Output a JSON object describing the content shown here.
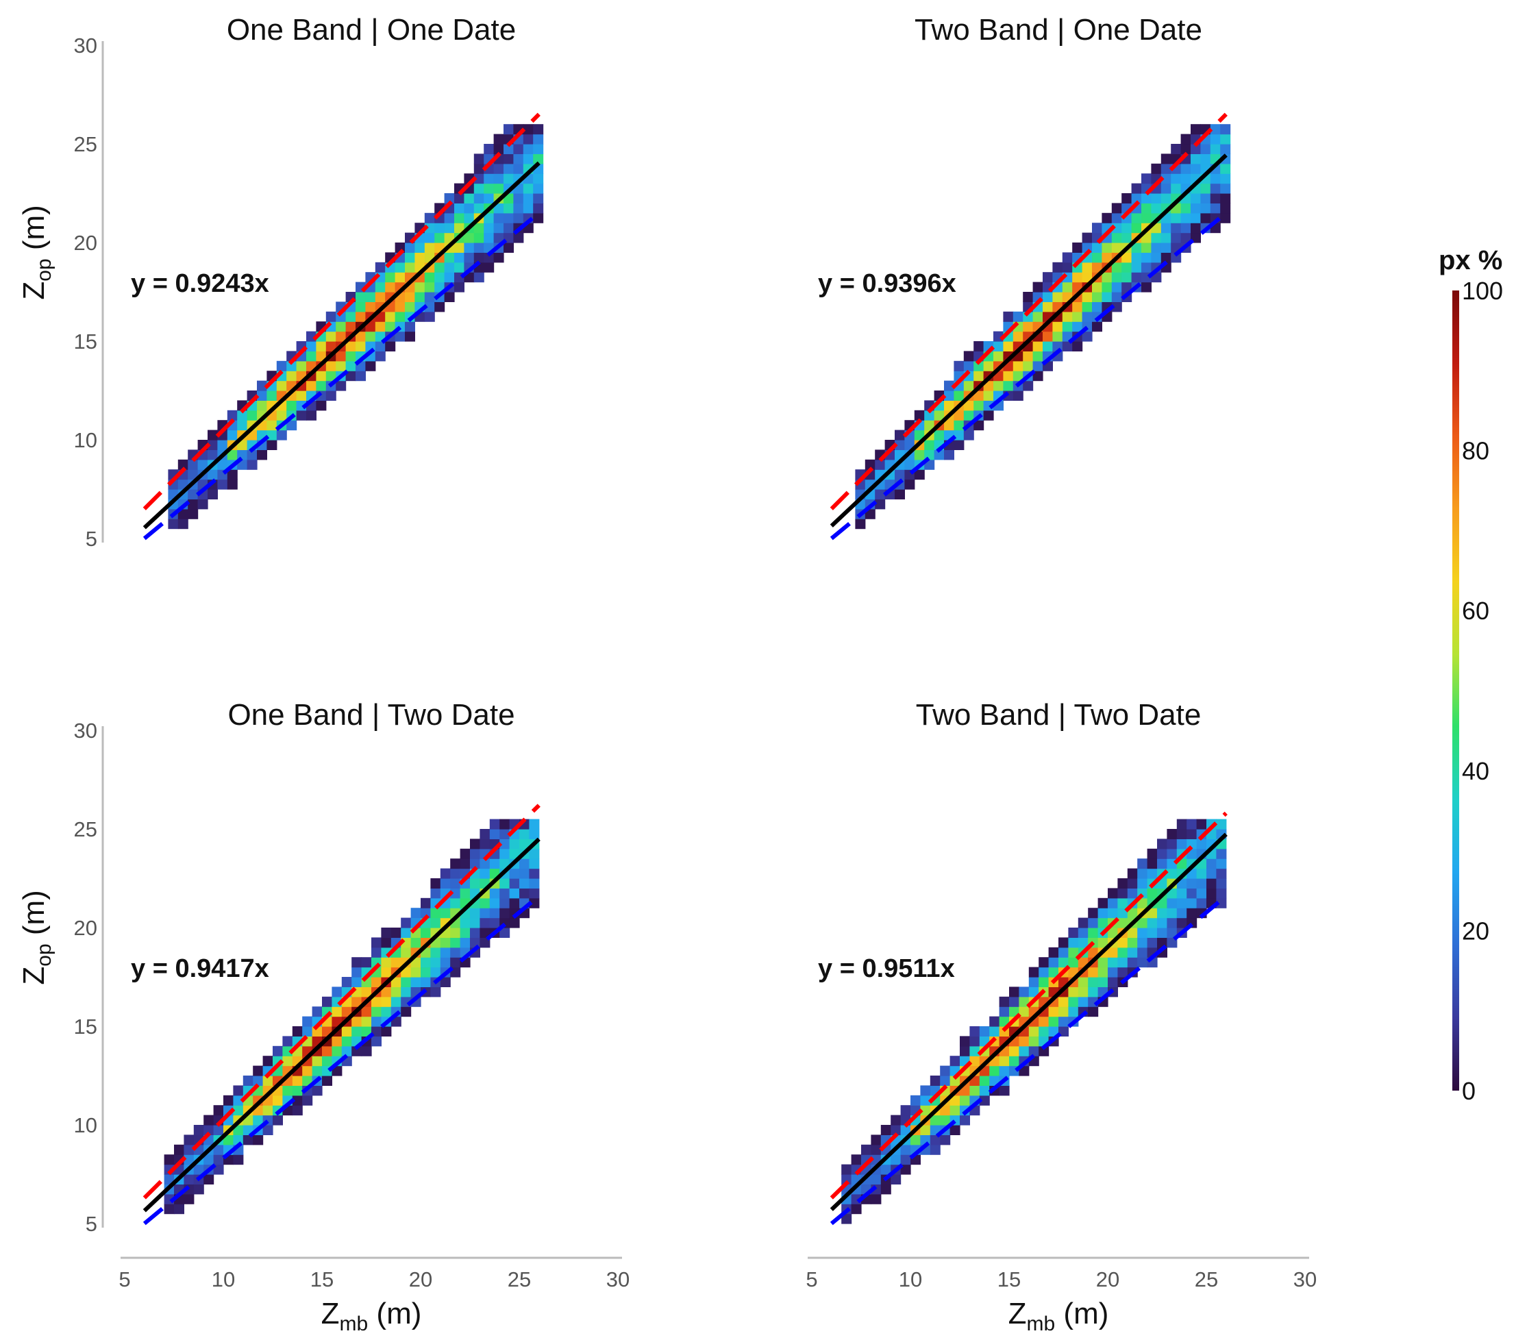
{
  "chart_data": [
    {
      "type": "heatmap",
      "title": "One Band | One Date",
      "xlabel": "Z",
      "xlabel_sub": "mb",
      "xlabel_unit": " (m)",
      "ylabel": "Z",
      "ylabel_sub": "op",
      "ylabel_unit": " (m)",
      "xlim": [
        5,
        30
      ],
      "ylim": [
        5,
        30
      ],
      "x_ticks": [
        "5",
        "10",
        "15",
        "20",
        "25",
        "30"
      ],
      "y_ticks": [
        "5",
        "10",
        "15",
        "20",
        "25",
        "30"
      ],
      "show_x_axis": false,
      "show_y_axis": true,
      "equation": "y = 0.9243x",
      "fit": {
        "slope": 0.9243,
        "x_range": [
          6,
          26
        ],
        "color": "#000000"
      },
      "upper_bound": {
        "x": [
          6,
          26
        ],
        "y": [
          6.5,
          26.5
        ],
        "color": "#ff0000"
      },
      "lower_bound": {
        "x": [
          6,
          26
        ],
        "y": [
          5.0,
          21.5
        ],
        "color": "#0000ff"
      },
      "density_band": {
        "x_range": [
          7.2,
          26
        ],
        "y_range": [
          6.8,
          25.8
        ],
        "peak_x": 16,
        "skew": 0.92
      },
      "grid": false
    },
    {
      "type": "heatmap",
      "title": "Two Band | One Date",
      "xlabel": "Z",
      "xlabel_sub": "mb",
      "xlabel_unit": " (m)",
      "ylabel": "Z",
      "ylabel_sub": "op",
      "ylabel_unit": " (m)",
      "xlim": [
        5,
        30
      ],
      "ylim": [
        5,
        30
      ],
      "x_ticks": [
        "5",
        "10",
        "15",
        "20",
        "25",
        "30"
      ],
      "y_ticks": [
        "5",
        "10",
        "15",
        "20",
        "25",
        "30"
      ],
      "show_x_axis": false,
      "show_y_axis": false,
      "equation": "y = 0.9396x",
      "fit": {
        "slope": 0.9396,
        "x_range": [
          6,
          26
        ],
        "color": "#000000"
      },
      "upper_bound": {
        "x": [
          6,
          26
        ],
        "y": [
          6.5,
          26.5
        ],
        "color": "#ff0000"
      },
      "lower_bound": {
        "x": [
          6,
          26
        ],
        "y": [
          5.0,
          21.5
        ],
        "color": "#0000ff"
      },
      "density_band": {
        "x_range": [
          7.2,
          26
        ],
        "y_range": [
          6.8,
          25.8
        ],
        "peak_x": 15.5,
        "skew": 0.94
      },
      "grid": false
    },
    {
      "type": "heatmap",
      "title": "One Band | Two Date",
      "xlabel": "Z",
      "xlabel_sub": "mb",
      "xlabel_unit": " (m)",
      "ylabel": "Z",
      "ylabel_sub": "op",
      "ylabel_unit": " (m)",
      "xlim": [
        5,
        30
      ],
      "ylim": [
        5,
        30
      ],
      "x_ticks": [
        "5",
        "10",
        "15",
        "20",
        "25",
        "30"
      ],
      "y_ticks": [
        "5",
        "10",
        "15",
        "20",
        "25",
        "30"
      ],
      "show_x_axis": true,
      "show_y_axis": true,
      "equation": "y = 0.9417x",
      "fit": {
        "slope": 0.9417,
        "x_range": [
          6,
          26
        ],
        "color": "#000000"
      },
      "upper_bound": {
        "x": [
          6,
          26
        ],
        "y": [
          6.3,
          26.2
        ],
        "color": "#ff0000"
      },
      "lower_bound": {
        "x": [
          6,
          26
        ],
        "y": [
          5.0,
          21.6
        ],
        "color": "#0000ff"
      },
      "density_band": {
        "x_range": [
          7,
          26
        ],
        "y_range": [
          6,
          25.2
        ],
        "peak_x": 15.5,
        "skew": 0.94
      },
      "grid": false
    },
    {
      "type": "heatmap",
      "title": "Two Band | Two Date",
      "xlabel": "Z",
      "xlabel_sub": "mb",
      "xlabel_unit": " (m)",
      "ylabel": "Z",
      "ylabel_sub": "op",
      "ylabel_unit": " (m)",
      "xlim": [
        5,
        30
      ],
      "ylim": [
        5,
        30
      ],
      "x_ticks": [
        "5",
        "10",
        "15",
        "20",
        "25",
        "30"
      ],
      "y_ticks": [
        "5",
        "10",
        "15",
        "20",
        "25",
        "30"
      ],
      "show_x_axis": true,
      "show_y_axis": false,
      "equation": "y = 0.9511x",
      "fit": {
        "slope": 0.9511,
        "x_range": [
          6,
          26
        ],
        "color": "#000000"
      },
      "upper_bound": {
        "x": [
          6,
          26
        ],
        "y": [
          6.3,
          25.8
        ],
        "color": "#ff0000"
      },
      "lower_bound": {
        "x": [
          6,
          26
        ],
        "y": [
          5.0,
          21.6
        ],
        "color": "#0000ff"
      },
      "density_band": {
        "x_range": [
          6.5,
          26
        ],
        "y_range": [
          5,
          25.2
        ],
        "peak_x": 15.5,
        "skew": 0.95
      },
      "grid": false
    }
  ],
  "legend": {
    "title": "px %",
    "ticks": [
      "0",
      "20",
      "40",
      "60",
      "80",
      "100"
    ],
    "range": [
      0,
      100
    ],
    "colormap": [
      "#2c0a3c",
      "#3a3a9e",
      "#2f6fd6",
      "#22a7f0",
      "#1fd0c8",
      "#2ee06a",
      "#b6e335",
      "#f4d21d",
      "#f79c1c",
      "#ec5a17",
      "#c01c10",
      "#7b0a0a"
    ],
    "placement": "right"
  }
}
